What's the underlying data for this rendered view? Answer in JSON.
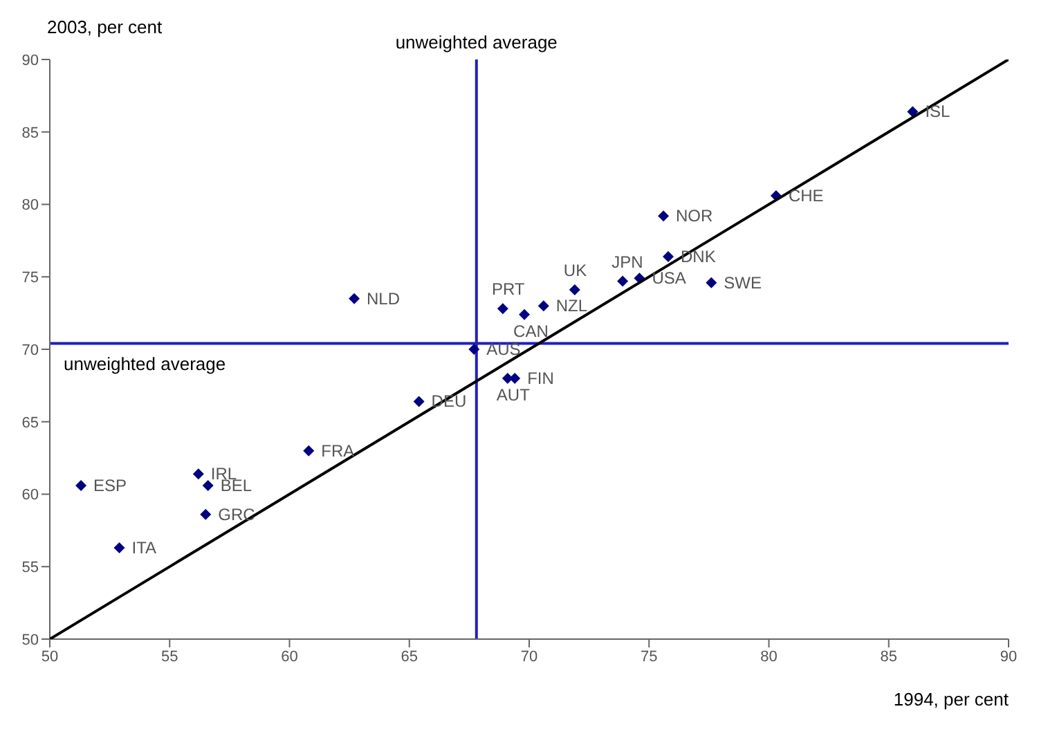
{
  "chart_data": {
    "type": "scatter",
    "xlabel": "1994, per cent",
    "ylabel": "2003, per cent",
    "xlim": [
      50,
      90
    ],
    "ylim": [
      50,
      90
    ],
    "xticks": [
      50,
      55,
      60,
      65,
      70,
      75,
      80,
      85,
      90
    ],
    "yticks": [
      50,
      55,
      60,
      65,
      70,
      75,
      80,
      85,
      90
    ],
    "grid": false,
    "legend": false,
    "series": [
      {
        "color": "#000080",
        "marker": "diamond",
        "x": [
          86.0,
          80.3,
          75.6,
          75.8,
          73.9,
          74.6,
          77.6,
          71.9,
          70.6,
          69.8,
          68.9,
          67.7,
          69.1,
          69.4,
          62.7,
          65.4,
          60.8,
          56.2,
          56.6,
          56.5,
          51.3,
          52.9
        ],
        "values": [
          86.4,
          80.6,
          79.2,
          76.4,
          74.7,
          74.9,
          74.6,
          74.1,
          73.0,
          72.4,
          72.8,
          70.0,
          68.0,
          68.0,
          73.5,
          66.4,
          63.0,
          61.4,
          60.6,
          58.6,
          60.6,
          56.3
        ],
        "value_labels": [
          "ISL",
          "CHE",
          "NOR",
          "DNK",
          "JPN",
          "USA",
          "SWE",
          "UK",
          "NZL",
          "CAN",
          "PRT",
          "AUS",
          "AUT",
          "FIN",
          "NLD",
          "DEU",
          "FRA",
          "IRL",
          "BEL",
          "GRC",
          "ESP",
          "ITA"
        ]
      },
      {
        "type": "line",
        "marker": "none",
        "color": "#000000",
        "x": [
          50,
          90
        ],
        "values": [
          50,
          90
        ]
      }
    ],
    "ref_lines": [
      {
        "axis": "x",
        "value": 67.8,
        "label": "unweighted average",
        "color": "#1f1fbf"
      },
      {
        "axis": "y",
        "value": 70.4,
        "label": "unweighted average",
        "color": "#1f1fbf"
      }
    ]
  }
}
